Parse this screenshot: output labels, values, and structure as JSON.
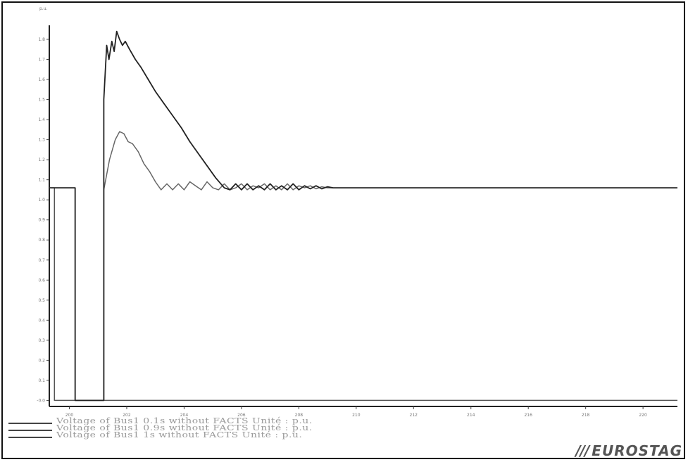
{
  "chart_data": {
    "type": "line",
    "ylabel": "p.u.",
    "xlabel": "",
    "xlim": [
      199.3,
      221.2
    ],
    "ylim": [
      -0.03,
      1.87
    ],
    "yticks": [
      "-0.0",
      "0.1",
      "0.2",
      "0.3",
      "0.4",
      "0.5",
      "0.6",
      "0.7",
      "0.8",
      "0.9",
      "1.0",
      "1.1",
      "1.2",
      "1.3",
      "1.4",
      "1.5",
      "1.6",
      "1.7",
      "1.8"
    ],
    "ytick_values": [
      0,
      0.1,
      0.2,
      0.3,
      0.4,
      0.5,
      0.6,
      0.7,
      0.8,
      0.9,
      1.0,
      1.1,
      1.2,
      1.3,
      1.4,
      1.5,
      1.6,
      1.7,
      1.8
    ],
    "xticks": [
      "200",
      "202",
      "204",
      "206",
      "208",
      "210",
      "212",
      "214",
      "216",
      "218",
      "220"
    ],
    "xtick_values": [
      200,
      202,
      204,
      206,
      208,
      210,
      212,
      214,
      216,
      218,
      220
    ],
    "grid": false,
    "legend_position": "bottom-left",
    "series": [
      {
        "name": "Voltage of Bus1   0.1s without FACTS  Unité : p.u.",
        "color": "#555555",
        "x": [
          199.3,
          199.48,
          199.48,
          199.6,
          199.6,
          199.75,
          199.9,
          200.05,
          200.2,
          200.3,
          200.5,
          200.7,
          200.85,
          201.05,
          201.3,
          201.55,
          201.8,
          202.05,
          202.35,
          202.5,
          202.75,
          202.9,
          203.05,
          203.2,
          203.35,
          203.5,
          203.65,
          203.8,
          203.95,
          204.1,
          204.25,
          204.4,
          204.55,
          204.7,
          204.85,
          205.0,
          205.15,
          205.3,
          205.45,
          205.6,
          205.75,
          205.9,
          206.05,
          206.2,
          206.35,
          206.5,
          206.65,
          206.8,
          206.95,
          207.1,
          207.25,
          207.4,
          207.55,
          207.7,
          207.85,
          208.0,
          208.15,
          208.3,
          208.45,
          208.6,
          208.8,
          209.0,
          209.2,
          209.4,
          210.0,
          212.0,
          214.0,
          216.0,
          218.0,
          220.0,
          221.2
        ],
        "y": [
          1.06,
          1.06,
          0.0,
          0.0,
          0.0,
          0.0,
          0.0,
          0.0,
          0.0,
          0.0,
          0.0,
          0.0,
          0.0,
          0.0,
          0.0,
          0.0,
          0.0,
          0.0,
          0.0,
          0.0,
          0.0,
          0.0,
          0.0,
          0.0,
          0.0,
          0.0,
          0.0,
          0.0,
          0.0,
          0.0,
          0.0,
          0.0,
          0.0,
          0.0,
          0.0,
          0.0,
          0.0,
          0.0,
          0.0,
          0.0,
          0.0,
          0.0,
          0.0,
          0.0,
          0.0,
          0.0,
          0.0,
          0.0,
          0.0,
          0.0,
          0.0,
          0.0,
          0.0,
          0.0,
          0.0,
          0.0,
          0.0,
          0.0,
          0.0,
          0.0,
          0.0,
          0.0,
          0.0,
          0.0,
          0.0,
          0.0,
          0.0,
          0.0,
          0.0,
          0.0,
          0.0
        ]
      },
      {
        "name": "Voltage of Bus1   0.9s without FACTS  Unité : p.u.",
        "color": "#666666",
        "x": [
          199.3,
          200.2,
          200.2,
          201.2,
          201.2,
          201.4,
          201.6,
          201.75,
          201.9,
          202.05,
          202.2,
          202.4,
          202.6,
          202.8,
          203.0,
          203.2,
          203.4,
          203.6,
          203.8,
          204.0,
          204.2,
          204.4,
          204.6,
          204.8,
          205.0,
          205.2,
          205.4,
          205.6,
          205.8,
          206.0,
          206.2,
          206.4,
          206.6,
          206.8,
          207.0,
          207.2,
          207.4,
          207.6,
          207.8,
          208.0,
          208.2,
          208.4,
          208.6,
          208.8,
          209.0,
          209.2,
          209.4,
          210.0,
          212.0,
          214.0,
          216.0,
          218.0,
          220.0,
          221.2
        ],
        "y": [
          1.06,
          1.06,
          0.0,
          0.0,
          1.05,
          1.2,
          1.3,
          1.34,
          1.33,
          1.29,
          1.28,
          1.24,
          1.18,
          1.14,
          1.09,
          1.05,
          1.08,
          1.05,
          1.08,
          1.05,
          1.09,
          1.07,
          1.05,
          1.09,
          1.06,
          1.05,
          1.08,
          1.05,
          1.06,
          1.08,
          1.05,
          1.07,
          1.06,
          1.08,
          1.05,
          1.07,
          1.05,
          1.08,
          1.05,
          1.07,
          1.06,
          1.07,
          1.055,
          1.065,
          1.06,
          1.06,
          1.06,
          1.06,
          1.06,
          1.06,
          1.06,
          1.06,
          1.06,
          1.06
        ]
      },
      {
        "name": "Voltage of Bus1   1s without FACTS   Unité : p.u.",
        "color": "#222222",
        "x": [
          199.3,
          200.2,
          200.2,
          201.2,
          201.2,
          201.3,
          201.38,
          201.48,
          201.56,
          201.65,
          201.75,
          201.85,
          201.95,
          202.1,
          202.3,
          202.5,
          202.75,
          203.0,
          203.3,
          203.6,
          203.9,
          204.2,
          204.5,
          204.8,
          205.1,
          205.4,
          205.6,
          205.8,
          206.0,
          206.2,
          206.4,
          206.6,
          206.8,
          207.0,
          207.2,
          207.4,
          207.6,
          207.8,
          208.0,
          208.2,
          208.4,
          208.6,
          208.8,
          209.0,
          209.2,
          209.4,
          210.0,
          212.0,
          214.0,
          216.0,
          218.0,
          220.0,
          221.2
        ],
        "y": [
          1.06,
          1.06,
          0.0,
          0.0,
          1.5,
          1.77,
          1.7,
          1.79,
          1.74,
          1.84,
          1.8,
          1.77,
          1.79,
          1.75,
          1.7,
          1.66,
          1.6,
          1.54,
          1.48,
          1.42,
          1.36,
          1.29,
          1.23,
          1.17,
          1.11,
          1.06,
          1.05,
          1.08,
          1.05,
          1.08,
          1.05,
          1.07,
          1.05,
          1.08,
          1.05,
          1.07,
          1.05,
          1.08,
          1.05,
          1.07,
          1.055,
          1.07,
          1.055,
          1.065,
          1.06,
          1.06,
          1.06,
          1.06,
          1.06,
          1.06,
          1.06,
          1.06,
          1.06
        ]
      }
    ]
  },
  "legend": [
    {
      "text": "Voltage of Bus1   0.1s without FACTS  Unité : p.u."
    },
    {
      "text": "Voltage of Bus1   0.9s without FACTS  Unité : p.u."
    },
    {
      "text": "Voltage of Bus1   1s without FACTS   Unité : p.u."
    }
  ],
  "logo": {
    "bars": "///",
    "text": "EUROSTAG"
  }
}
